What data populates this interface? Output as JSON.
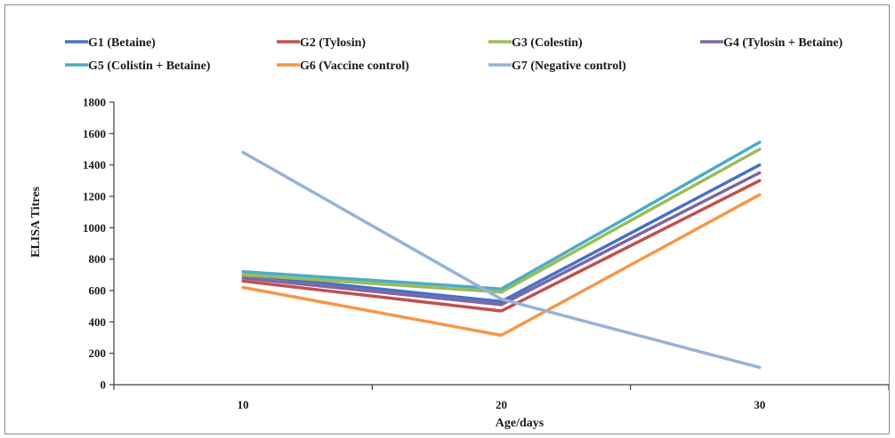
{
  "chart_data": {
    "type": "line",
    "title": "",
    "xlabel": "Age/days",
    "ylabel": "ELISA Titres",
    "categories": [
      "10",
      "20",
      "30"
    ],
    "ylim": [
      0,
      1800
    ],
    "yticks": [
      "0",
      "200",
      "400",
      "600",
      "800",
      "1000",
      "1200",
      "1400",
      "1600",
      "1800"
    ],
    "grid": false,
    "legend_position": "top",
    "series": [
      {
        "name": "G1 (Betaine)",
        "color": "#4472c4",
        "values": [
          700,
          530,
          1400
        ]
      },
      {
        "name": "G2 (Tylosin)",
        "color": "#c0504d",
        "values": [
          660,
          470,
          1300
        ]
      },
      {
        "name": "G3 (Colestin)",
        "color": "#9bbb59",
        "values": [
          700,
          590,
          1500
        ]
      },
      {
        "name": "G4 (Tylosin + Betaine)",
        "color": "#8064a2",
        "values": [
          680,
          510,
          1350
        ]
      },
      {
        "name": "G5 (Colistin + Betaine)",
        "color": "#4bacc6",
        "values": [
          720,
          610,
          1545
        ]
      },
      {
        "name": "G6 (Vaccine control)",
        "color": "#f79646",
        "values": [
          620,
          315,
          1210
        ]
      },
      {
        "name": "G7 (Negative control)",
        "color": "#95b3d7",
        "values": [
          1480,
          545,
          110
        ]
      }
    ]
  }
}
